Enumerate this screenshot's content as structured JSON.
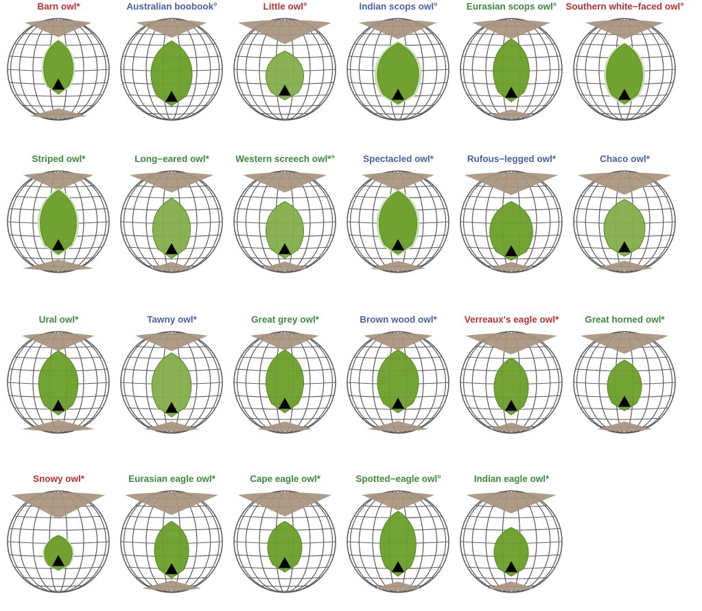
{
  "colors": {
    "red": "#b93232",
    "blue": "#4862a8",
    "green": "#3c8c3c",
    "field": "#6d9e2a",
    "fieldAlt": "#84ad4b",
    "shadow": "#c9dfb2",
    "bill": "#a89480",
    "grid": "#5e5e5e",
    "marker": "#000000"
  },
  "owls": [
    {
      "name": "Barn owl*",
      "group": "red",
      "fieldWidth": 0.34,
      "fieldTop": 0.22,
      "fieldBottom": 0.74,
      "lightness": 0,
      "shadow": true,
      "billTop": 0.38,
      "billBottom": 0.28
    },
    {
      "name": "Australian boobook°",
      "group": "blue",
      "fieldWidth": 0.48,
      "fieldTop": 0.22,
      "fieldBottom": 0.86,
      "lightness": 0,
      "shadow": false,
      "billTop": 0.42,
      "billBottom": 0
    },
    {
      "name": "Little owl°",
      "group": "red",
      "fieldWidth": 0.44,
      "fieldTop": 0.32,
      "fieldBottom": 0.8,
      "lightness": 1,
      "shadow": false,
      "billTop": 0.8,
      "billBottom": 0
    },
    {
      "name": "Indian scops owl°",
      "group": "blue",
      "fieldWidth": 0.48,
      "fieldTop": 0.24,
      "fieldBottom": 0.84,
      "lightness": 0,
      "shadow": true,
      "billTop": 0.5,
      "billBottom": 0
    },
    {
      "name": "Eurasian scops owl°",
      "group": "green",
      "fieldWidth": 0.42,
      "fieldTop": 0.2,
      "fieldBottom": 0.82,
      "lightness": 0,
      "shadow": false,
      "billTop": 0.5,
      "billBottom": 0.14
    },
    {
      "name": "Southern white−faced owl°",
      "group": "red",
      "fieldWidth": 0.42,
      "fieldTop": 0.25,
      "fieldBottom": 0.84,
      "lightness": 0,
      "shadow": true,
      "billTop": 0.5,
      "billBottom": 0
    },
    {
      "name": "Striped owl*",
      "group": "green",
      "fieldWidth": 0.42,
      "fieldTop": 0.19,
      "fieldBottom": 0.82,
      "lightness": 0,
      "shadow": true,
      "billTop": 0.42,
      "billBottom": 0.42
    },
    {
      "name": "Long−eared owl*",
      "group": "green",
      "fieldWidth": 0.44,
      "fieldTop": 0.27,
      "fieldBottom": 0.86,
      "lightness": 1,
      "shadow": false,
      "billTop": 0.56,
      "billBottom": 0.14
    },
    {
      "name": "Western screech owl*°",
      "group": "green",
      "fieldWidth": 0.44,
      "fieldTop": 0.3,
      "fieldBottom": 0.86,
      "lightness": 1,
      "shadow": false,
      "billTop": 0.56,
      "billBottom": 0.18
    },
    {
      "name": "Spectacled owl*",
      "group": "blue",
      "fieldWidth": 0.44,
      "fieldTop": 0.2,
      "fieldBottom": 0.82,
      "lightness": 0,
      "shadow": true,
      "billTop": 0.44,
      "billBottom": 0.26
    },
    {
      "name": "Rufous−legged owl*",
      "group": "blue",
      "fieldWidth": 0.5,
      "fieldTop": 0.3,
      "fieldBottom": 0.88,
      "lightness": 0,
      "shadow": false,
      "billTop": 0.72,
      "billBottom": 0.14
    },
    {
      "name": "Chaco owl*",
      "group": "blue",
      "fieldWidth": 0.48,
      "fieldTop": 0.28,
      "fieldBottom": 0.84,
      "lightness": 1,
      "shadow": false,
      "billTop": 0.7,
      "billBottom": 0.28
    },
    {
      "name": "Ural owl*",
      "group": "green",
      "fieldWidth": 0.46,
      "fieldTop": 0.19,
      "fieldBottom": 0.82,
      "lightness": 0,
      "shadow": false,
      "billTop": 0.44,
      "billBottom": 0.44
    },
    {
      "name": "Tawny owl*",
      "group": "blue",
      "fieldWidth": 0.46,
      "fieldTop": 0.21,
      "fieldBottom": 0.84,
      "lightness": 1,
      "shadow": false,
      "billTop": 0.44,
      "billBottom": 0.26
    },
    {
      "name": "Great grey owl*",
      "group": "green",
      "fieldWidth": 0.44,
      "fieldTop": 0.18,
      "fieldBottom": 0.8,
      "lightness": 0,
      "shadow": false,
      "billTop": 0.4,
      "billBottom": 0.26
    },
    {
      "name": "Brown wood owl*",
      "group": "blue",
      "fieldWidth": 0.48,
      "fieldTop": 0.18,
      "fieldBottom": 0.8,
      "lightness": 0,
      "shadow": false,
      "billTop": 0.4,
      "billBottom": 0.32
    },
    {
      "name": "Verreaux's eagle owl*",
      "group": "red",
      "fieldWidth": 0.4,
      "fieldTop": 0.26,
      "fieldBottom": 0.82,
      "lightness": 0,
      "shadow": false,
      "billTop": 0.64,
      "billBottom": 0.14
    },
    {
      "name": "Great horned owl*",
      "group": "green",
      "fieldWidth": 0.4,
      "fieldTop": 0.28,
      "fieldBottom": 0.78,
      "lightness": 0,
      "shadow": false,
      "billTop": 0.6,
      "billBottom": 0.26
    },
    {
      "name": "Snowy owl*",
      "group": "red",
      "fieldWidth": 0.32,
      "fieldTop": 0.44,
      "fieldBottom": 0.78,
      "lightness": 0,
      "shadow": true,
      "billTop": 0.95,
      "billBottom": 0
    },
    {
      "name": "Eurasian eagle owl*",
      "group": "green",
      "fieldWidth": 0.4,
      "fieldTop": 0.3,
      "fieldBottom": 0.86,
      "lightness": 0,
      "shadow": false,
      "billTop": 0.72,
      "billBottom": 0.3
    },
    {
      "name": "Cape eagle owl*",
      "group": "green",
      "fieldWidth": 0.4,
      "fieldTop": 0.3,
      "fieldBottom": 0.8,
      "lightness": 0,
      "shadow": false,
      "billTop": 0.8,
      "billBottom": 0
    },
    {
      "name": "Spotted−eagle owl°",
      "group": "green",
      "fieldWidth": 0.42,
      "fieldTop": 0.2,
      "fieldBottom": 0.84,
      "lightness": 0,
      "shadow": false,
      "billTop": 0.44,
      "billBottom": 0.18
    },
    {
      "name": "Indian eagle owl*",
      "group": "green",
      "fieldWidth": 0.4,
      "fieldTop": 0.36,
      "fieldBottom": 0.84,
      "lightness": 0,
      "shadow": false,
      "billTop": 0.62,
      "billBottom": 0.18
    }
  ]
}
